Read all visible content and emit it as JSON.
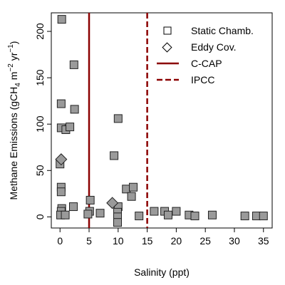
{
  "chart_data": {
    "type": "scatter",
    "xlabel": "Salinity (ppt)",
    "ylabel": {
      "prefix": "Methane Emissions (gCH",
      "sub": "4",
      "m": " m",
      "exp1": "−2",
      "yr": " yr",
      "exp2": "−1",
      "suffix": ")"
    },
    "xlim": [
      -1.5,
      36.5
    ],
    "ylim": [
      -12,
      220
    ],
    "xticks": [
      0,
      5,
      10,
      15,
      20,
      25,
      30,
      35
    ],
    "yticks": [
      0,
      50,
      100,
      150,
      200
    ],
    "grid": false,
    "legend_position": "top-right",
    "legend": [
      {
        "label": "Static Chamb.",
        "symbol": "square"
      },
      {
        "label": "Eddy Cov.",
        "symbol": "diamond"
      },
      {
        "label": "C-CAP",
        "symbol": "solid-line"
      },
      {
        "label": "IPCC",
        "symbol": "dashed-line"
      }
    ],
    "colors": {
      "marker_fill": "#9a9a9a",
      "marker_edge": "#222222",
      "reference_line": "#8b0000"
    },
    "reference_lines": [
      {
        "name": "C-CAP",
        "x": 5,
        "style": "solid"
      },
      {
        "name": "IPCC",
        "x": 15,
        "style": "dashed"
      }
    ],
    "series": [
      {
        "name": "Static Chamb.",
        "marker": "square",
        "points": [
          [
            0.3,
            213
          ],
          [
            0.2,
            122
          ],
          [
            0.0,
            57
          ],
          [
            0.2,
            96
          ],
          [
            1.0,
            94
          ],
          [
            1.7,
            97
          ],
          [
            2.4,
            164
          ],
          [
            2.5,
            116
          ],
          [
            0.2,
            32
          ],
          [
            0.2,
            27
          ],
          [
            0.3,
            9
          ],
          [
            0.2,
            6
          ],
          [
            0.1,
            2
          ],
          [
            0.9,
            2
          ],
          [
            2.3,
            11
          ],
          [
            5.2,
            18
          ],
          [
            5.1,
            6
          ],
          [
            4.8,
            3
          ],
          [
            6.9,
            4
          ],
          [
            9.3,
            66
          ],
          [
            10.0,
            106
          ],
          [
            10.0,
            11
          ],
          [
            9.9,
            5
          ],
          [
            9.9,
            0
          ],
          [
            9.9,
            -6
          ],
          [
            11.4,
            30
          ],
          [
            12.6,
            32
          ],
          [
            12.3,
            22
          ],
          [
            13.6,
            1
          ],
          [
            16.2,
            6
          ],
          [
            18.0,
            6
          ],
          [
            18.6,
            2
          ],
          [
            20.0,
            6
          ],
          [
            22.2,
            2
          ],
          [
            23.2,
            1
          ],
          [
            26.2,
            2
          ],
          [
            31.8,
            1
          ],
          [
            33.8,
            1
          ],
          [
            35.0,
            1
          ]
        ]
      },
      {
        "name": "Eddy Cov.",
        "marker": "diamond",
        "points": [
          [
            0.2,
            62
          ],
          [
            9.0,
            15
          ]
        ]
      }
    ]
  }
}
